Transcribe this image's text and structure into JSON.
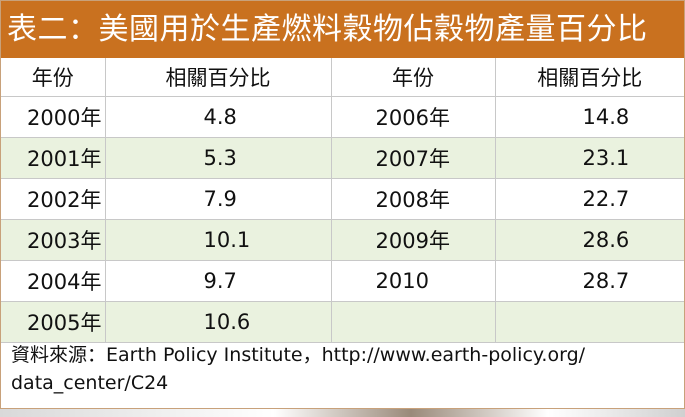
{
  "title": "表二：美國用於生產燃料穀物佔穀物產量百分比",
  "headers": [
    "年份",
    "相關百分比",
    "年份",
    "相關百分比"
  ],
  "rows": [
    {
      "year1": "2000年",
      "pct1": "4.8",
      "year2": "2006年",
      "pct2": "14.8"
    },
    {
      "year1": "2001年",
      "pct1": "5.3",
      "year2": "2007年",
      "pct2": "23.1"
    },
    {
      "year1": "2002年",
      "pct1": "7.9",
      "year2": "2008年",
      "pct2": "22.7"
    },
    {
      "year1": "2003年",
      "pct1": "10.1",
      "year2": "2009年",
      "pct2": "28.6"
    },
    {
      "year1": "2004年",
      "pct1": "9.7",
      "year2": "2010",
      "pct2": "28.7"
    },
    {
      "year1": "2005年",
      "pct1": "10.6",
      "year2": "",
      "pct2": ""
    }
  ],
  "source_line1": "資料來源：Earth Policy Institute，http://www.earth-policy.org/",
  "source_line2": "data_center/C24",
  "colors": {
    "title_bg": "#c9711f",
    "stripe_bg": "#eaf2df",
    "border": "#c8c8c8"
  }
}
